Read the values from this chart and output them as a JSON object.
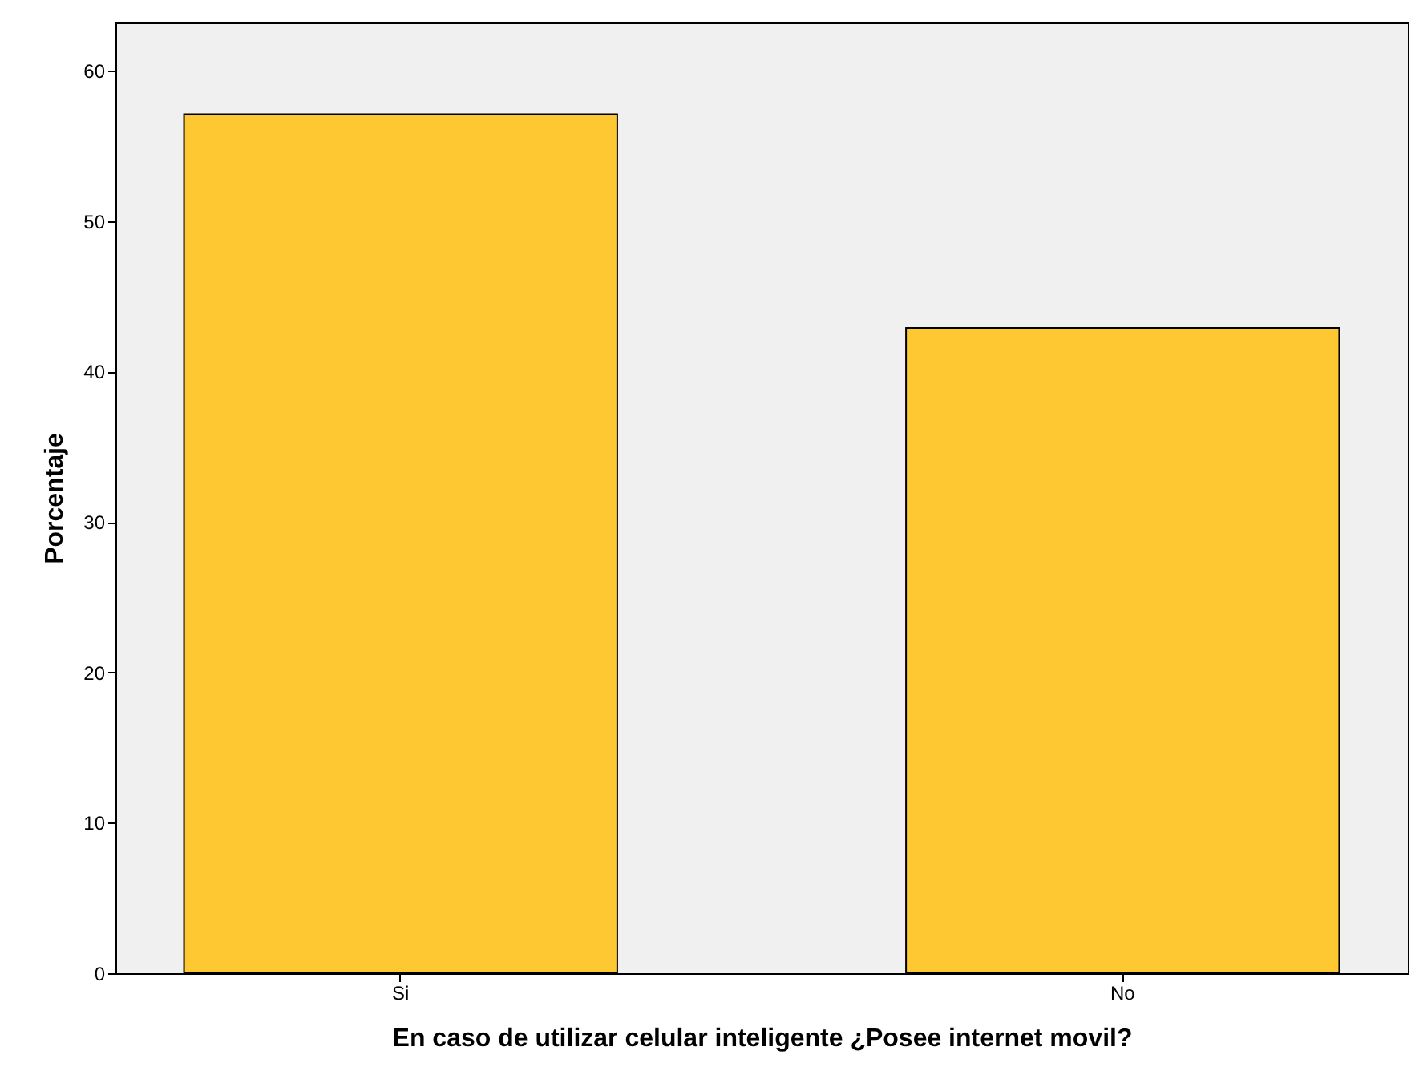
{
  "chart_data": {
    "type": "bar",
    "xlabel": "En caso de utilizar celular inteligente ¿Posee internet movil?",
    "ylabel": "Porcentaje",
    "categories": [
      "Si",
      "No"
    ],
    "values": [
      57.1,
      42.9
    ],
    "color": "#fdc832",
    "ylim": [
      0,
      63.2
    ],
    "yticks": [
      0,
      10,
      20,
      30,
      40,
      50,
      60
    ],
    "grid": false
  }
}
